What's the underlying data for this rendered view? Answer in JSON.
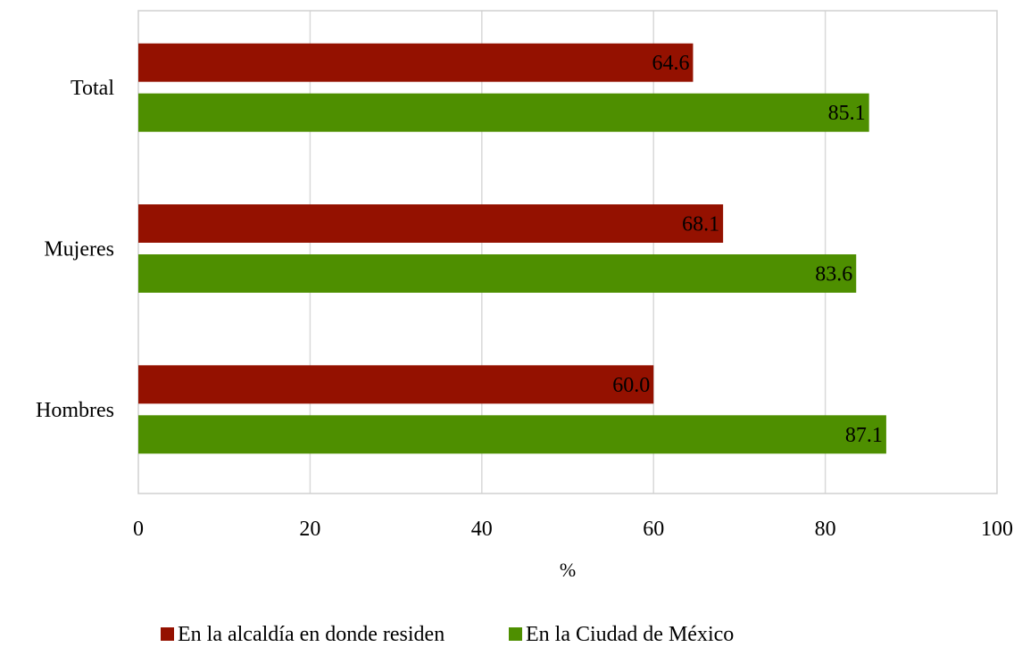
{
  "chart_data": {
    "type": "bar",
    "orientation": "horizontal",
    "categories": [
      "Total",
      "Mujeres",
      "Hombres"
    ],
    "series": [
      {
        "name": "En la alcaldía en donde residen",
        "color": "#941100",
        "values": [
          64.6,
          68.1,
          60.0
        ],
        "labels": [
          "64.6",
          "68.1",
          "60.0"
        ]
      },
      {
        "name": "En la Ciudad de México",
        "color": "#4e8f00",
        "values": [
          85.1,
          83.6,
          87.1
        ],
        "labels": [
          "85.1",
          "83.6",
          "87.1"
        ]
      }
    ],
    "title": "",
    "xlabel": "%",
    "ylabel": "",
    "xlim": [
      0,
      100
    ],
    "xticks": [
      "0",
      "20",
      "40",
      "60",
      "80",
      "100"
    ],
    "grid": true,
    "legend_position": "bottom"
  }
}
